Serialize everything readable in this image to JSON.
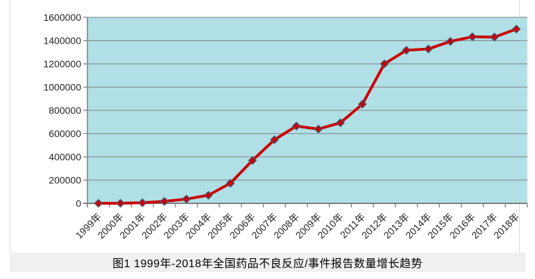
{
  "caption": "图1 1999年-2018年全国药品不良反应/事件报告数量增长趋势",
  "colors": {
    "plot_bg": "#B0E0E6",
    "gridline": "#8A9296",
    "axis": "#7F7F7F",
    "line": "#CC0000",
    "marker_fill": "#CC0000",
    "marker_border": "#3C5F7D",
    "tick_text": "#262626",
    "caption_bg": "#F0F0F0",
    "figure_border": "#D9D9D9"
  },
  "chart_data": {
    "type": "line",
    "title": "图1 1999年-2018年全国药品不良反应/事件报告数量增长趋势",
    "xlabel": "",
    "ylabel": "",
    "categories": [
      "1999年",
      "2000年",
      "2001年",
      "2002年",
      "2003年",
      "2004年",
      "2005年",
      "2006年",
      "2007年",
      "2008年",
      "2009年",
      "2010年",
      "2011年",
      "2012年",
      "2013年",
      "2014年",
      "2015年",
      "2016年",
      "2017年",
      "2018年"
    ],
    "values": [
      400,
      1000,
      5000,
      17000,
      37000,
      70000,
      173000,
      369000,
      547000,
      665000,
      639000,
      693000,
      853000,
      1200000,
      1317000,
      1328000,
      1393000,
      1433000,
      1430000,
      1499000
    ],
    "ylim": [
      0,
      1600000
    ],
    "y_ticks": [
      0,
      200000,
      400000,
      600000,
      800000,
      1000000,
      1200000,
      1400000,
      1600000
    ],
    "grid": "horizontal",
    "legend": "none",
    "marker": "diamond",
    "x_label_rotation": -45
  }
}
